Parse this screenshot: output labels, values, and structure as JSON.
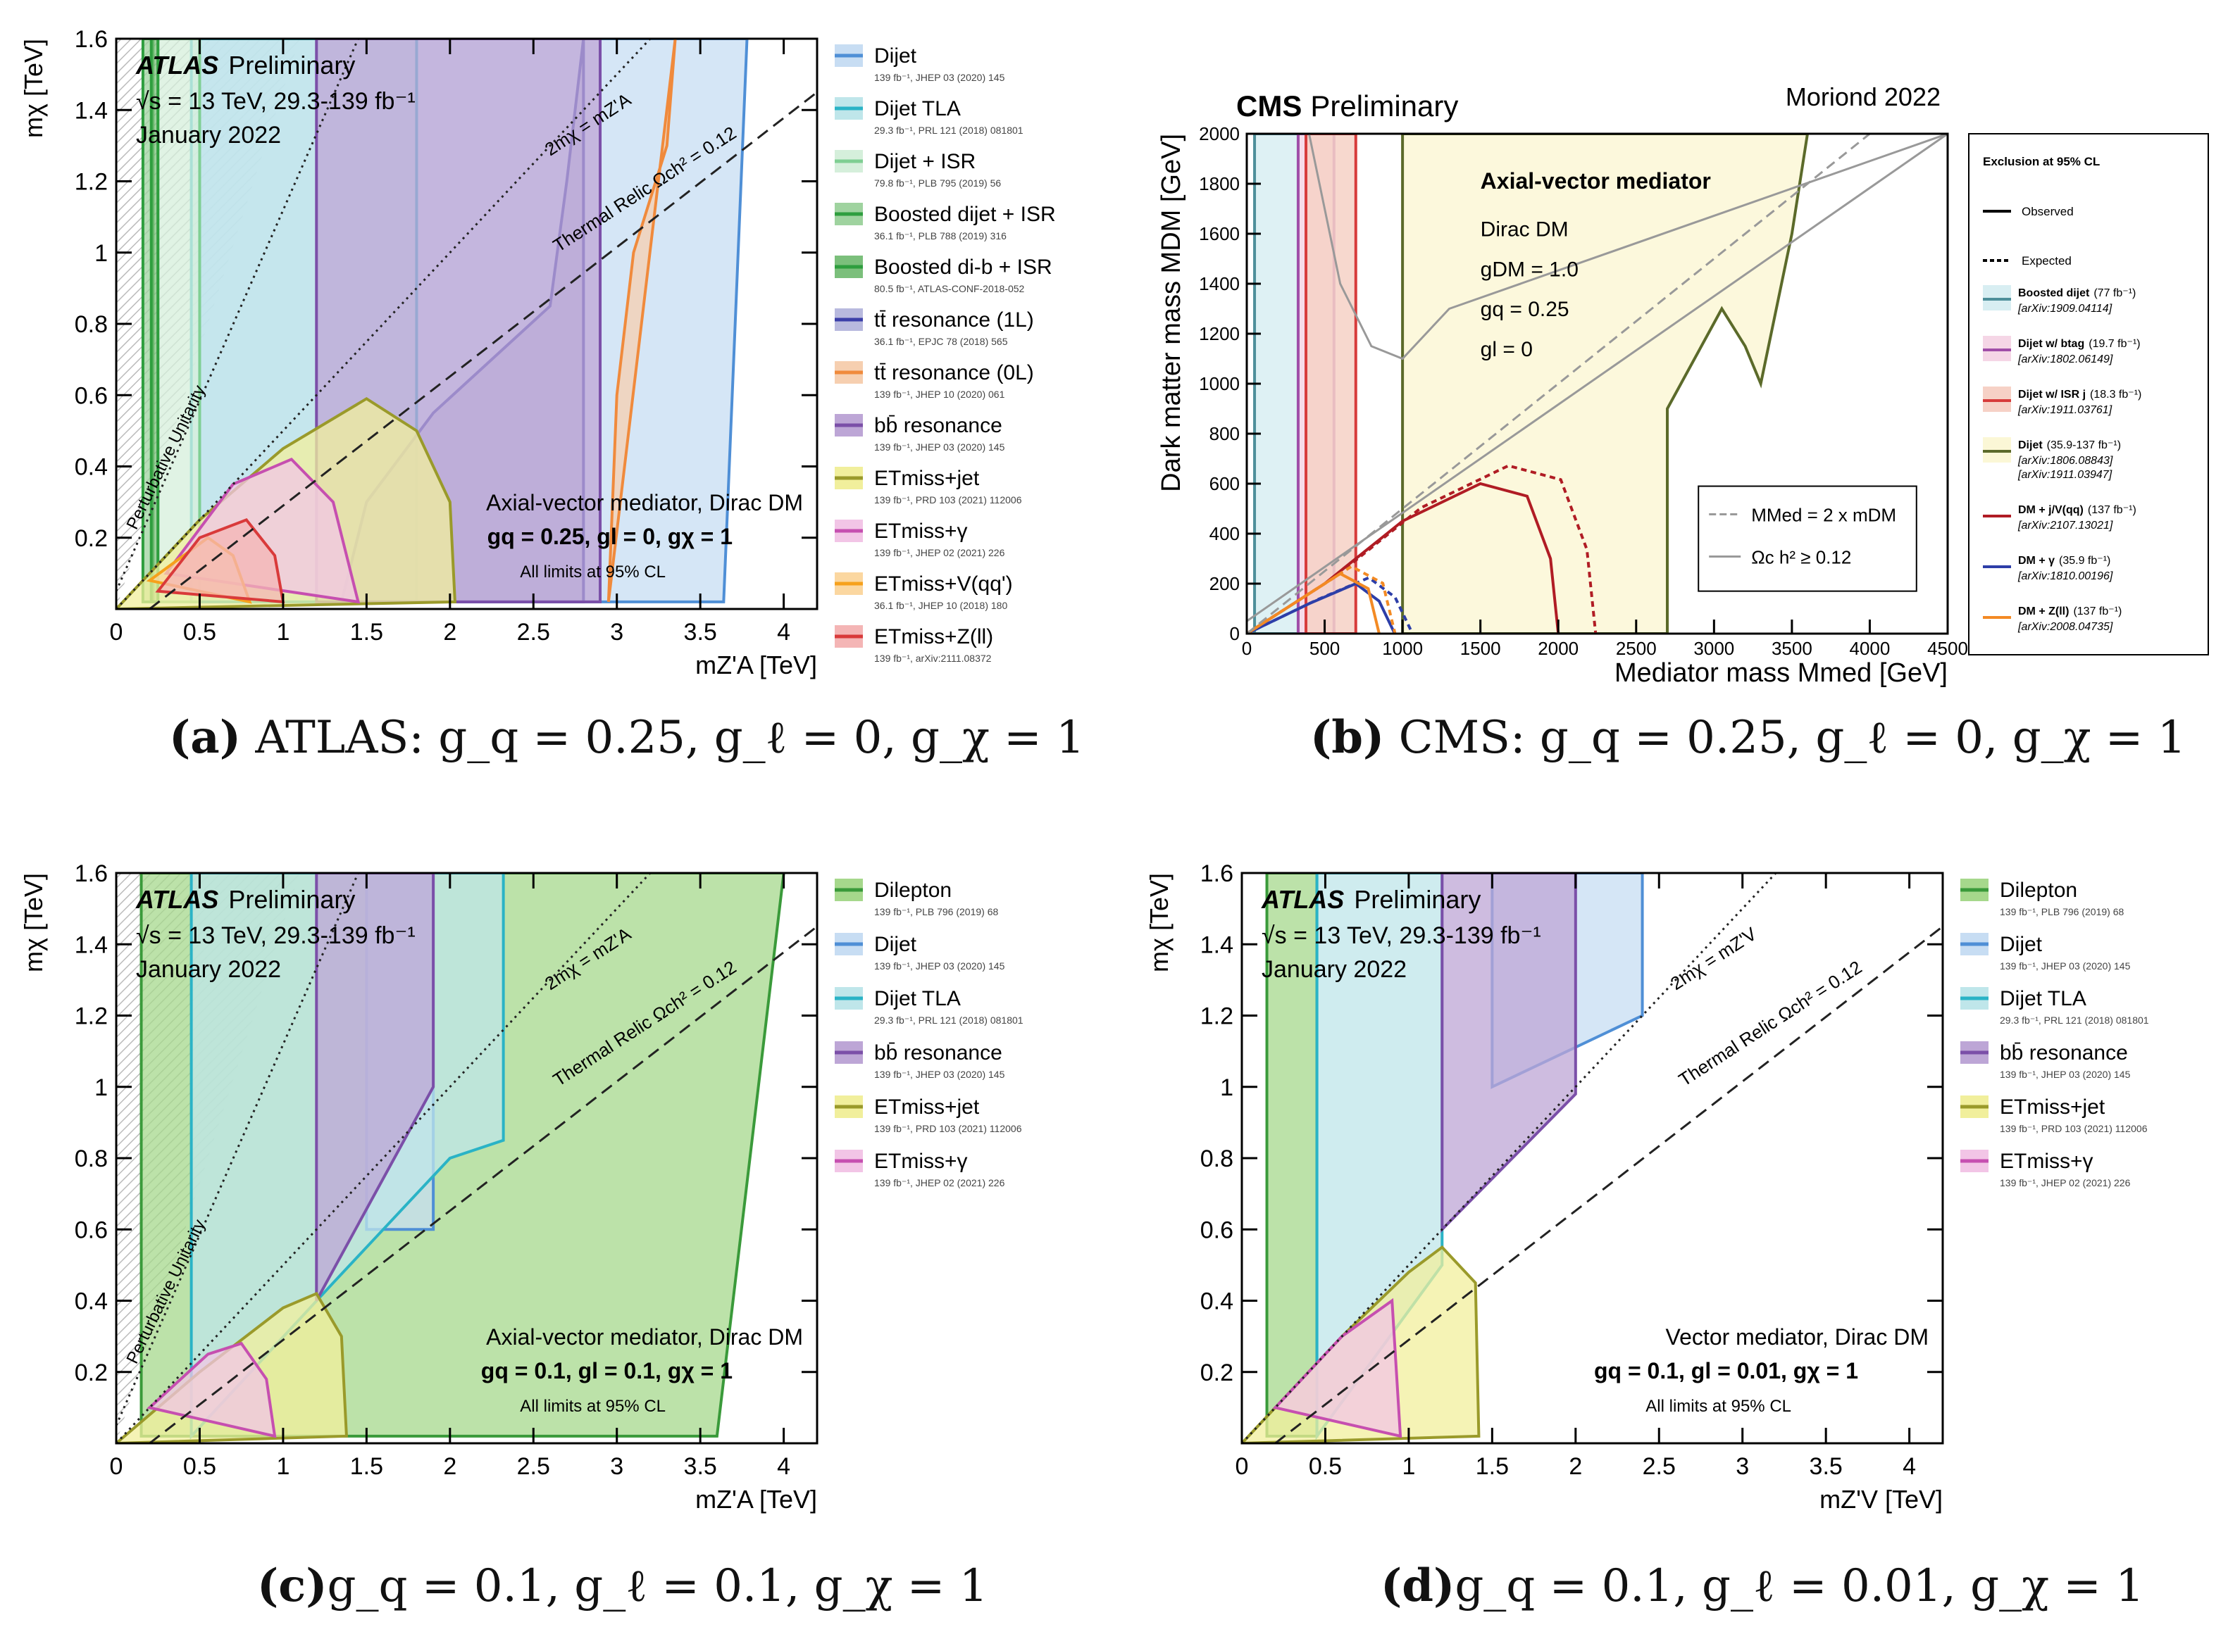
{
  "panels": {
    "a": {
      "caption": {
        "letter": "(a)",
        "text": "ATLAS: g_q = 0.25, g_ℓ = 0, g_χ = 1",
        "prefix": "ATLAS: "
      },
      "header": {
        "experiment": "ATLAS",
        "status": "Preliminary",
        "energy": "√s = 13 TeV, 29.3-139 fb⁻¹",
        "date": "January 2022"
      },
      "model": {
        "line1": "Axial-vector mediator, Dirac DM",
        "line2": "gq = 0.25, gl = 0, gχ = 1",
        "line3": "All limits at 95% CL"
      },
      "curve_labels": {
        "diag": "2mχ = mZ'A",
        "relic": "Thermal Relic Ωch² = 0.12",
        "unitarity": "Perturbative Unitarity"
      }
    },
    "b": {
      "caption": {
        "letter": "(b)",
        "text": "CMS: g_q = 0.25, g_ℓ = 0, g_χ = 1",
        "prefix": "CMS: "
      },
      "header": {
        "experiment": "CMS",
        "status": "Preliminary",
        "conference": "Moriond 2022"
      },
      "model": {
        "line1": "Axial-vector mediator",
        "line2": "Dirac DM",
        "line3": "gDM = 1.0",
        "line4": "gq = 0.25",
        "line5": "gl = 0"
      },
      "inner_legend": {
        "diag": "MMed = 2 x mDM",
        "relic": "Ωc h² ≥ 0.12"
      },
      "legend_title": "Exclusion at 95% CL",
      "legend_observed": "Observed",
      "legend_expected": "Expected"
    },
    "c": {
      "caption": {
        "letter": "(c)",
        "text": "g_q = 0.1, g_ℓ = 0.1, g_χ = 1"
      },
      "header": {
        "experiment": "ATLAS",
        "status": "Preliminary",
        "energy": "√s = 13 TeV, 29.3-139 fb⁻¹",
        "date": "January 2022"
      },
      "model": {
        "line1": "Axial-vector mediator, Dirac DM",
        "line2": "gq = 0.1, gl = 0.1, gχ = 1",
        "line3": "All limits at 95% CL"
      },
      "curve_labels": {
        "diag": "2mχ = mZ'A",
        "relic": "Thermal Relic Ωch² = 0.12",
        "unitarity": "Perturbative Unitarity"
      }
    },
    "d": {
      "caption": {
        "letter": "(d)",
        "text": "g_q = 0.1, g_ℓ = 0.01, g_χ = 1"
      },
      "header": {
        "experiment": "ATLAS",
        "status": "Preliminary",
        "energy": "√s = 13 TeV, 29.3-139 fb⁻¹",
        "date": "January 2022"
      },
      "model": {
        "line1": "Vector mediator, Dirac DM",
        "line2": "gq = 0.1, gl = 0.01, gχ = 1",
        "line3": "All limits at 95% CL"
      },
      "curve_labels": {
        "diag": "2mχ = mZ'V",
        "relic": "Thermal Relic Ωch² = 0.12"
      }
    }
  },
  "chart_data": [
    {
      "id": "a",
      "type": "area",
      "title": "ATLAS Preliminary",
      "xlabel": "mZ'A [TeV]",
      "ylabel": "mχ [TeV]",
      "xlim": [
        0,
        4.2
      ],
      "ylim": [
        0,
        1.6
      ],
      "xticks": [
        "0",
        "0.5",
        "1",
        "1.5",
        "2",
        "2.5",
        "3",
        "3.5",
        "4"
      ],
      "yticks": [
        "0.2",
        "0.4",
        "0.6",
        "0.8",
        "1",
        "1.2",
        "1.4",
        "1.6"
      ],
      "series": [
        {
          "name": "Dijet",
          "ref": "139 fb⁻¹, JHEP 03 (2020) 145",
          "color": "#4f8fd6",
          "fill": "#c7ddf3",
          "x": [
            0.5,
            0.5,
            3.78,
            3.64,
            0.5
          ],
          "y": [
            0.02,
            1.6,
            1.6,
            0.02,
            0.02
          ]
        },
        {
          "name": "Dijet TLA",
          "ref": "29.3 fb⁻¹, PRL 121 (2018) 081801",
          "color": "#2ab3c6",
          "fill": "#bfe6ea",
          "x": [
            0.45,
            0.45,
            1.8,
            1.8
          ],
          "y": [
            0.02,
            1.6,
            1.6,
            0.02
          ]
        },
        {
          "name": "Dijet + ISR",
          "ref": "79.8 fb⁻¹, PLB 795 (2019) 56",
          "color": "#7fcf93",
          "fill": "#d5efdb",
          "x": [
            0.25,
            0.25,
            0.5,
            0.5
          ],
          "y": [
            0.02,
            1.6,
            1.6,
            0.02
          ]
        },
        {
          "name": "Boosted dijet + ISR",
          "ref": "36.1 fb⁻¹, PLB 788 (2019) 316",
          "color": "#2e9e3e",
          "fill": "#9fd39f",
          "x": [
            0.16,
            0.16,
            0.22,
            0.22
          ],
          "y": [
            0.02,
            1.6,
            1.6,
            0.02
          ]
        },
        {
          "name": "Boosted di-b + ISR",
          "ref": "80.5 fb⁻¹, ATLAS-CONF-2018-052",
          "color": "#2e9e3e",
          "fill": "#7bbf7b",
          "x": [
            0.21,
            0.21,
            0.25,
            0.25
          ],
          "y": [
            0.02,
            1.6,
            1.6,
            0.02
          ]
        },
        {
          "name": "tt̄ resonance (1L)",
          "ref": "36.1 fb⁻¹, EPJC 78 (2018) 565",
          "color": "#3b3fa8",
          "fill": "#b8b9de",
          "x": [
            1.35,
            1.5,
            1.9,
            2.6,
            2.7,
            2.8,
            2.8
          ],
          "y": [
            0.02,
            0.3,
            0.55,
            0.85,
            1.2,
            1.6,
            0.02
          ]
        },
        {
          "name": "tt̄ resonance (0L)",
          "ref": "139 fb⁻¹, JHEP 10 (2020) 061",
          "color": "#f08a3c",
          "fill": "#f6cfb0",
          "x": [
            2.95,
            3.0,
            3.1,
            3.3,
            3.35
          ],
          "y": [
            0.02,
            0.6,
            1.0,
            1.3,
            1.6
          ]
        },
        {
          "name": "bb̄ resonance",
          "ref": "139 fb⁻¹, JHEP 03 (2020) 145",
          "color": "#7b4fa8",
          "fill": "#bda6d6",
          "x": [
            1.2,
            1.2,
            2.9,
            2.9
          ],
          "y": [
            0.02,
            1.6,
            1.6,
            0.02
          ]
        },
        {
          "name": "ETmiss+jet",
          "ref": "139 fb⁻¹, PRD 103 (2021) 112006",
          "color": "#9a9a2a",
          "fill": "#f1ef9c",
          "x": [
            0.0,
            0.5,
            1.0,
            1.5,
            1.8,
            2.0,
            2.03
          ],
          "y": [
            0.0,
            0.25,
            0.45,
            0.59,
            0.5,
            0.3,
            0.02
          ]
        },
        {
          "name": "ETmiss+γ",
          "ref": "139 fb⁻¹, JHEP 02 (2021) 226",
          "color": "#c64fb0",
          "fill": "#f2c5e6",
          "x": [
            0.3,
            0.7,
            1.05,
            1.3,
            1.45
          ],
          "y": [
            0.1,
            0.35,
            0.42,
            0.3,
            0.02
          ]
        },
        {
          "name": "ETmiss+V(qq')",
          "ref": "36.1 fb⁻¹, JHEP 10 (2018) 180",
          "color": "#f6a11c",
          "fill": "#fbd7a0",
          "x": [
            0.2,
            0.55,
            0.7,
            0.8
          ],
          "y": [
            0.08,
            0.2,
            0.15,
            0.02
          ]
        },
        {
          "name": "ETmiss+Z(ll)",
          "ref": "139 fb⁻¹, arXiv:2111.08372",
          "color": "#d93a3a",
          "fill": "#f4b5b5",
          "x": [
            0.25,
            0.5,
            0.78,
            0.95,
            1.0
          ],
          "y": [
            0.05,
            0.2,
            0.25,
            0.15,
            0.02
          ]
        }
      ]
    },
    {
      "id": "b",
      "type": "area",
      "title": "CMS Preliminary",
      "xlabel": "Mediator mass Mmed [GeV]",
      "ylabel": "Dark matter mass MDM [GeV]",
      "xlim": [
        0,
        4500
      ],
      "ylim": [
        0,
        2000
      ],
      "xticks": [
        "0",
        "500",
        "1000",
        "1500",
        "2000",
        "2500",
        "3000",
        "3500",
        "4000",
        "4500"
      ],
      "yticks": [
        "0",
        "200",
        "400",
        "600",
        "800",
        "1000",
        "1200",
        "1400",
        "1600",
        "1800",
        "2000"
      ],
      "series": [
        {
          "name": "Boosted dijet",
          "lumi": "(77 fb⁻¹)",
          "ref": "[arXiv:1909.04114]",
          "color": "#4e8f9a",
          "fill": "#d8eef2",
          "x": [
            50,
            50,
            330,
            330
          ],
          "y": [
            0,
            2000,
            2000,
            0
          ]
        },
        {
          "name": "Dijet w/ btag",
          "lumi": "(19.7 fb⁻¹)",
          "ref": "[arXiv:1802.06149]",
          "color": "#a04ea8",
          "fill": "#f5d6e6",
          "x": [
            330,
            330,
            560,
            560
          ],
          "y": [
            0,
            2000,
            2000,
            0
          ]
        },
        {
          "name": "Dijet w/ ISR j",
          "lumi": "(18.3 fb⁻¹)",
          "ref": "[arXiv:1911.03761]",
          "color": "#d73c3c",
          "fill": "#f6d1c6",
          "x": [
            380,
            380,
            700,
            700
          ],
          "y": [
            0,
            2000,
            2000,
            0
          ]
        },
        {
          "name": "Dijet",
          "lumi": "(35.9-137 fb⁻¹)",
          "ref1": "[arXiv:1806.08843]",
          "ref2": "[arXiv:1911.03947]",
          "color": "#5b6a2a",
          "fill": "#fbf7d6",
          "x": [
            1000,
            1000,
            3600,
            3500,
            3300,
            3200,
            3050,
            2700,
            2700
          ],
          "y": [
            0,
            2000,
            2000,
            1600,
            1000,
            1150,
            1300,
            900,
            0
          ]
        },
        {
          "name": "DM + j/V(qq)",
          "lumi": "(137 fb⁻¹)",
          "ref": "[arXiv:2107.13021]",
          "color": "#b01c24",
          "x": [
            0,
            500,
            1000,
            1500,
            1800,
            1950,
            2000
          ],
          "y": [
            0,
            200,
            450,
            600,
            550,
            300,
            0
          ]
        },
        {
          "name": "DM + γ",
          "lumi": "(35.9 fb⁻¹)",
          "ref": "[arXiv:1810.00196]",
          "color": "#2d3ea8",
          "x": [
            0,
            400,
            700,
            850,
            950
          ],
          "y": [
            0,
            120,
            200,
            130,
            0
          ]
        },
        {
          "name": "DM + Z(ll)",
          "lumi": "(137 fb⁻¹)",
          "ref": "[arXiv:2008.04735]",
          "color": "#f38a24",
          "x": [
            0,
            300,
            600,
            780,
            850
          ],
          "y": [
            0,
            120,
            240,
            180,
            0
          ]
        }
      ]
    },
    {
      "id": "c",
      "type": "area",
      "title": "ATLAS Preliminary",
      "xlabel": "mZ'A [TeV]",
      "ylabel": "mχ [TeV]",
      "xlim": [
        0,
        4.2
      ],
      "ylim": [
        0,
        1.6
      ],
      "xticks": [
        "0",
        "0.5",
        "1",
        "1.5",
        "2",
        "2.5",
        "3",
        "3.5",
        "4"
      ],
      "yticks": [
        "0.2",
        "0.4",
        "0.6",
        "0.8",
        "1",
        "1.2",
        "1.4",
        "1.6"
      ],
      "series": [
        {
          "name": "Dilepton",
          "ref": "139 fb⁻¹, PLB 796 (2019) 68",
          "color": "#3a9a3a",
          "fill": "#a6d88c",
          "x": [
            0.15,
            0.15,
            4.0,
            3.6
          ],
          "y": [
            0.02,
            1.6,
            1.6,
            0.02
          ]
        },
        {
          "name": "Dijet",
          "ref": "139 fb⁻¹, JHEP 03 (2020) 145",
          "color": "#4f8fd6",
          "fill": "#c7ddf3",
          "x": [
            1.5,
            1.5,
            1.9,
            1.9
          ],
          "y": [
            0.6,
            1.6,
            1.6,
            0.6
          ]
        },
        {
          "name": "Dijet TLA",
          "ref": "29.3 fb⁻¹, PRL 121 (2018) 081801",
          "color": "#2ab3c6",
          "fill": "#bfe6ea",
          "x": [
            0.45,
            0.45,
            2.32,
            2.32,
            2.0,
            1.5,
            1.3,
            0.45
          ],
          "y": [
            0.02,
            1.6,
            1.6,
            0.85,
            0.8,
            0.55,
            0.45,
            0.02
          ]
        },
        {
          "name": "bb̄ resonance",
          "ref": "139 fb⁻¹, JHEP 03 (2020) 145",
          "color": "#7b4fa8",
          "fill": "#bda6d6",
          "x": [
            1.2,
            1.2,
            1.9,
            1.9
          ],
          "y": [
            0.4,
            1.6,
            1.6,
            1.0
          ]
        },
        {
          "name": "ETmiss+jet",
          "ref": "139 fb⁻¹, PRD 103 (2021) 112006",
          "color": "#9a9a2a",
          "fill": "#f1ef9c",
          "x": [
            0.0,
            0.5,
            1.0,
            1.2,
            1.35,
            1.38
          ],
          "y": [
            0.0,
            0.2,
            0.38,
            0.42,
            0.3,
            0.02
          ]
        },
        {
          "name": "ETmiss+γ",
          "ref": "139 fb⁻¹, JHEP 02 (2021) 226",
          "color": "#c64fb0",
          "fill": "#f2c5e6",
          "x": [
            0.2,
            0.55,
            0.75,
            0.9,
            0.95
          ],
          "y": [
            0.1,
            0.25,
            0.28,
            0.18,
            0.02
          ]
        }
      ]
    },
    {
      "id": "d",
      "type": "area",
      "title": "ATLAS Preliminary",
      "xlabel": "mZ'V [TeV]",
      "ylabel": "mχ [TeV]",
      "xlim": [
        0,
        4.2
      ],
      "ylim": [
        0,
        1.6
      ],
      "xticks": [
        "0",
        "0.5",
        "1",
        "1.5",
        "2",
        "2.5",
        "3",
        "3.5",
        "4"
      ],
      "yticks": [
        "0.2",
        "0.4",
        "0.6",
        "0.8",
        "1",
        "1.2",
        "1.4",
        "1.6"
      ],
      "series": [
        {
          "name": "Dilepton",
          "ref": "139 fb⁻¹, PLB 796 (2019) 68",
          "color": "#3a9a3a",
          "fill": "#a6d88c",
          "x": [
            0.15,
            0.15,
            0.45,
            0.45
          ],
          "y": [
            0.02,
            1.6,
            1.6,
            0.02
          ]
        },
        {
          "name": "Dijet",
          "ref": "139 fb⁻¹, JHEP 03 (2020) 145",
          "color": "#4f8fd6",
          "fill": "#c7ddf3",
          "x": [
            1.5,
            1.5,
            2.4,
            2.4
          ],
          "y": [
            1.0,
            1.6,
            1.6,
            1.2
          ]
        },
        {
          "name": "Dijet TLA",
          "ref": "29.3 fb⁻¹, PRL 121 (2018) 081801",
          "color": "#2ab3c6",
          "fill": "#bfe6ea",
          "x": [
            0.45,
            0.45,
            1.2,
            1.2
          ],
          "y": [
            0.02,
            1.6,
            1.6,
            0.5
          ]
        },
        {
          "name": "bb̄ resonance",
          "ref": "139 fb⁻¹, JHEP 03 (2020) 145",
          "color": "#7b4fa8",
          "fill": "#bda6d6",
          "x": [
            1.2,
            1.2,
            2.0,
            2.0
          ],
          "y": [
            0.6,
            1.6,
            1.6,
            0.98
          ]
        },
        {
          "name": "ETmiss+jet",
          "ref": "139 fb⁻¹, PRD 103 (2021) 112006",
          "color": "#9a9a2a",
          "fill": "#f1ef9c",
          "x": [
            0.0,
            0.6,
            1.0,
            1.2,
            1.4,
            1.42
          ],
          "y": [
            0.0,
            0.3,
            0.48,
            0.55,
            0.45,
            0.02
          ]
        },
        {
          "name": "ETmiss+γ",
          "ref": "139 fb⁻¹, JHEP 02 (2021) 226",
          "color": "#c64fb0",
          "fill": "#f2c5e6",
          "x": [
            0.2,
            0.6,
            0.9,
            0.95
          ],
          "y": [
            0.1,
            0.3,
            0.4,
            0.02
          ]
        }
      ]
    }
  ]
}
